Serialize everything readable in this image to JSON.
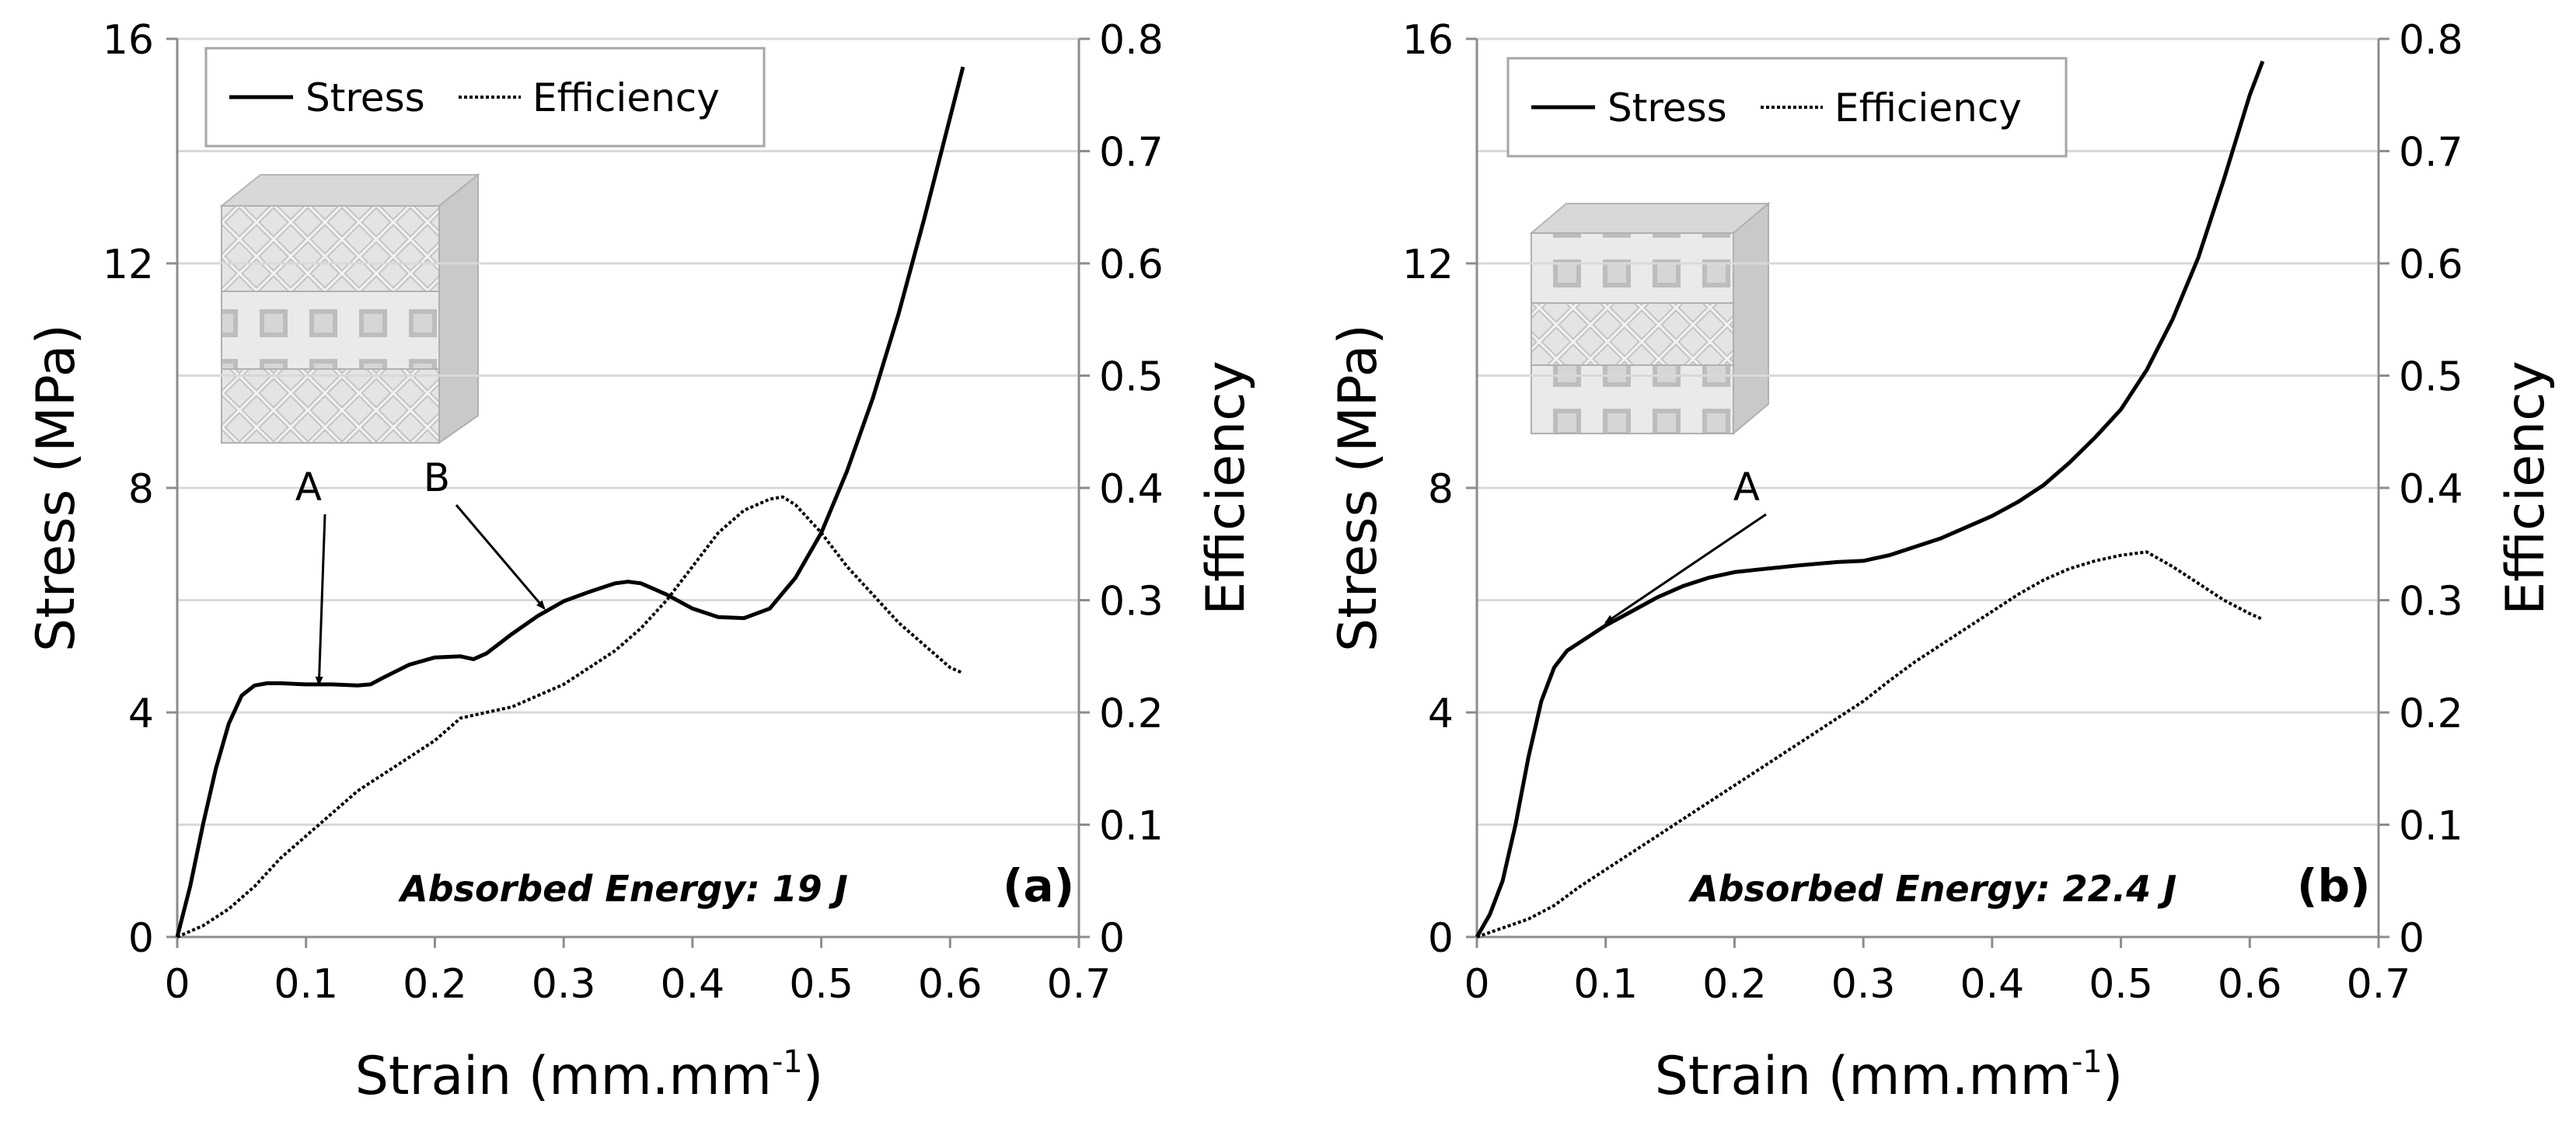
{
  "chart_data": [
    {
      "type": "line",
      "panel_label": "(a)",
      "xlabel": "Strain (mm.mm",
      "xlabel_sup": "-1",
      "xlabel_end": ")",
      "ylabel": "Stress (MPa)",
      "y2label": "Efficiency",
      "xlim": [
        0,
        0.7
      ],
      "ylim": [
        0,
        16
      ],
      "y2lim": [
        0,
        0.8
      ],
      "x_ticks": [
        "0",
        "0.1",
        "0.2",
        "0.3",
        "0.4",
        "0.5",
        "0.6",
        "0.7"
      ],
      "y_ticks": [
        "0",
        "4",
        "8",
        "12",
        "16"
      ],
      "y2_ticks": [
        "0",
        "0.1",
        "0.2",
        "0.3",
        "0.4",
        "0.5",
        "0.6",
        "0.7",
        "0.8"
      ],
      "grid": "horizontal",
      "legend": {
        "placement": "top-left",
        "entries": [
          "Stress",
          "Efficiency"
        ]
      },
      "annotation_text": "Absorbed Energy: 19 J",
      "arrows": [
        {
          "label": "A",
          "target": [
            0.11,
            4.5
          ]
        },
        {
          "label": "B",
          "target": [
            0.285,
            5.85
          ]
        }
      ],
      "series": [
        {
          "name": "Stress",
          "axis": "left",
          "style": "solid",
          "x": [
            0,
            0.01,
            0.02,
            0.03,
            0.04,
            0.05,
            0.06,
            0.07,
            0.08,
            0.1,
            0.12,
            0.14,
            0.15,
            0.16,
            0.18,
            0.2,
            0.22,
            0.23,
            0.24,
            0.26,
            0.28,
            0.3,
            0.32,
            0.34,
            0.35,
            0.36,
            0.38,
            0.4,
            0.42,
            0.44,
            0.46,
            0.48,
            0.5,
            0.52,
            0.54,
            0.56,
            0.58,
            0.6,
            0.61
          ],
          "y": [
            0,
            0.9,
            2.0,
            3.0,
            3.8,
            4.3,
            4.48,
            4.52,
            4.52,
            4.5,
            4.5,
            4.48,
            4.5,
            4.62,
            4.85,
            4.98,
            5.0,
            4.95,
            5.05,
            5.4,
            5.72,
            5.98,
            6.15,
            6.3,
            6.33,
            6.3,
            6.1,
            5.85,
            5.7,
            5.68,
            5.85,
            6.4,
            7.2,
            8.3,
            9.6,
            11.1,
            12.8,
            14.6,
            15.5
          ]
        },
        {
          "name": "Efficiency",
          "axis": "right",
          "style": "dotted",
          "x": [
            0,
            0.02,
            0.04,
            0.06,
            0.08,
            0.1,
            0.12,
            0.14,
            0.16,
            0.18,
            0.2,
            0.22,
            0.24,
            0.26,
            0.28,
            0.3,
            0.32,
            0.34,
            0.36,
            0.38,
            0.4,
            0.42,
            0.44,
            0.46,
            0.47,
            0.48,
            0.5,
            0.52,
            0.54,
            0.56,
            0.58,
            0.6,
            0.61
          ],
          "y": [
            0,
            0.01,
            0.025,
            0.045,
            0.07,
            0.09,
            0.11,
            0.13,
            0.145,
            0.16,
            0.175,
            0.195,
            0.2,
            0.205,
            0.215,
            0.225,
            0.24,
            0.255,
            0.275,
            0.3,
            0.33,
            0.36,
            0.38,
            0.39,
            0.392,
            0.385,
            0.36,
            0.33,
            0.305,
            0.28,
            0.26,
            0.24,
            0.235
          ]
        }
      ]
    },
    {
      "type": "line",
      "panel_label": "(b)",
      "xlabel": "Strain (mm.mm",
      "xlabel_sup": "-1",
      "xlabel_end": ")",
      "ylabel": "Stress (MPa)",
      "y2label": "Efficiency",
      "xlim": [
        0,
        0.7
      ],
      "ylim": [
        0,
        16
      ],
      "y2lim": [
        0,
        0.8
      ],
      "x_ticks": [
        "0",
        "0.1",
        "0.2",
        "0.3",
        "0.4",
        "0.5",
        "0.6",
        "0.7"
      ],
      "y_ticks": [
        "0",
        "4",
        "8",
        "12",
        "16"
      ],
      "y2_ticks": [
        "0",
        "0.1",
        "0.2",
        "0.3",
        "0.4",
        "0.5",
        "0.6",
        "0.7",
        "0.8"
      ],
      "grid": "horizontal",
      "legend": {
        "placement": "top-left",
        "entries": [
          "Stress",
          "Efficiency"
        ]
      },
      "annotation_text": "Absorbed Energy: 22.4 J",
      "arrows": [
        {
          "label": "A",
          "target": [
            0.1,
            5.6
          ]
        }
      ],
      "series": [
        {
          "name": "Stress",
          "axis": "left",
          "style": "solid",
          "x": [
            0,
            0.01,
            0.02,
            0.03,
            0.04,
            0.05,
            0.06,
            0.07,
            0.08,
            0.1,
            0.12,
            0.14,
            0.16,
            0.18,
            0.2,
            0.22,
            0.25,
            0.28,
            0.3,
            0.32,
            0.34,
            0.36,
            0.38,
            0.4,
            0.42,
            0.44,
            0.46,
            0.48,
            0.5,
            0.52,
            0.54,
            0.56,
            0.58,
            0.6,
            0.61
          ],
          "y": [
            0,
            0.4,
            1.0,
            2.0,
            3.2,
            4.2,
            4.8,
            5.1,
            5.25,
            5.55,
            5.8,
            6.05,
            6.25,
            6.4,
            6.5,
            6.55,
            6.62,
            6.68,
            6.7,
            6.8,
            6.95,
            7.1,
            7.3,
            7.5,
            7.75,
            8.05,
            8.45,
            8.9,
            9.4,
            10.1,
            11.0,
            12.1,
            13.5,
            15.0,
            15.6
          ]
        },
        {
          "name": "Efficiency",
          "axis": "right",
          "style": "dotted",
          "x": [
            0,
            0.02,
            0.04,
            0.06,
            0.08,
            0.1,
            0.12,
            0.14,
            0.16,
            0.18,
            0.2,
            0.22,
            0.24,
            0.26,
            0.28,
            0.3,
            0.32,
            0.34,
            0.36,
            0.38,
            0.4,
            0.42,
            0.44,
            0.46,
            0.48,
            0.5,
            0.52,
            0.54,
            0.56,
            0.58,
            0.6,
            0.61
          ],
          "y": [
            0,
            0.008,
            0.016,
            0.028,
            0.045,
            0.06,
            0.075,
            0.09,
            0.105,
            0.12,
            0.135,
            0.15,
            0.165,
            0.18,
            0.195,
            0.21,
            0.228,
            0.245,
            0.26,
            0.275,
            0.29,
            0.305,
            0.318,
            0.328,
            0.335,
            0.34,
            0.343,
            0.33,
            0.315,
            0.3,
            0.288,
            0.283
          ]
        }
      ]
    }
  ]
}
